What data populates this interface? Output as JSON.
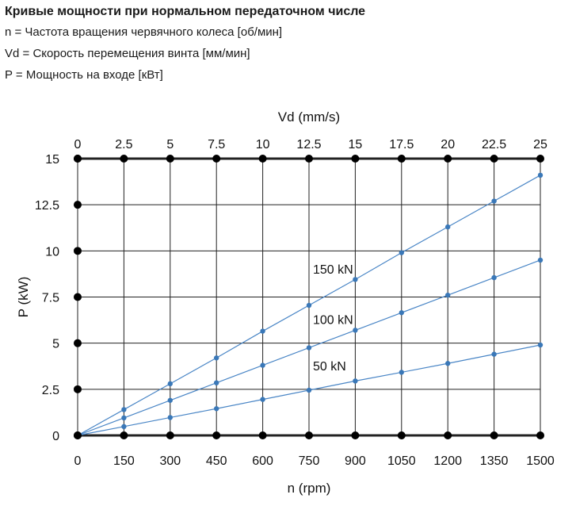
{
  "header": {
    "title": "Кривые мощности при нормальном передаточном числе",
    "lines": [
      "n = Частота вращения червячного колеса [об/мин]",
      "Vd = Скорость перемещения винта [мм/мин]",
      "P = Мощность на входе [кВт]"
    ]
  },
  "chart_data": {
    "type": "line",
    "xlabel": "n (rpm)",
    "ylabel": "P (kW)",
    "x2label": "Vd (mm/s)",
    "x": [
      0,
      150,
      300,
      450,
      600,
      750,
      900,
      1050,
      1200,
      1350,
      1500
    ],
    "xlim": [
      0,
      1500
    ],
    "ylim": [
      0,
      15
    ],
    "x_ticks": [
      "0",
      "150",
      "300",
      "450",
      "600",
      "750",
      "900",
      "1050",
      "1200",
      "1350",
      "1500"
    ],
    "x2_ticks": [
      "0",
      "2.5",
      "5",
      "7.5",
      "10",
      "12.5",
      "15",
      "17.5",
      "20",
      "22.5",
      "25"
    ],
    "y_ticks": [
      "0",
      "2.5",
      "5",
      "7.5",
      "10",
      "12.5",
      "15"
    ],
    "grid": true,
    "series": [
      {
        "name": "150 kN",
        "values": [
          0,
          1.4,
          2.8,
          4.2,
          5.65,
          7.05,
          8.45,
          9.9,
          11.3,
          12.7,
          14.1
        ]
      },
      {
        "name": "100 kN",
        "values": [
          0,
          0.95,
          1.9,
          2.85,
          3.8,
          4.75,
          5.7,
          6.65,
          7.6,
          8.55,
          9.5
        ]
      },
      {
        "name": "50 kN",
        "values": [
          0,
          0.48,
          0.97,
          1.45,
          1.95,
          2.45,
          2.95,
          3.42,
          3.9,
          4.4,
          4.9
        ]
      }
    ],
    "colors": {
      "line": "#4a86c6",
      "marker": "#3a78b8",
      "grid": "#222222",
      "axis_dot": "#000000"
    }
  }
}
